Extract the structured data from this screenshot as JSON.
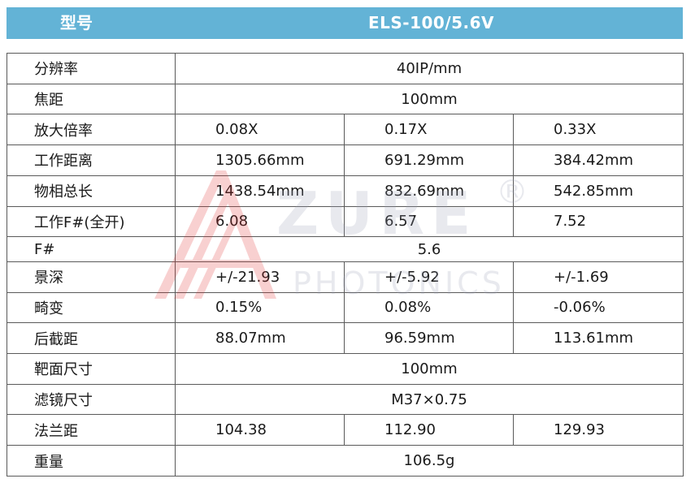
{
  "header": {
    "model_label": "型号",
    "model_value": "ELS-100/5.6V"
  },
  "watermark": {
    "brand": "ZURE",
    "subtitle": "PHOTONICS",
    "registered": "®"
  },
  "rows": [
    {
      "label": "分辨率",
      "span": "40IP/mm"
    },
    {
      "label": "焦距",
      "span": "100mm"
    },
    {
      "label": "放大倍率",
      "values": [
        "0.08X",
        "0.17X",
        "0.33X"
      ]
    },
    {
      "label": "工作距离",
      "values": [
        "1305.66mm",
        "691.29mm",
        "384.42mm"
      ]
    },
    {
      "label": "物相总长",
      "values": [
        "1438.54mm",
        "832.69mm",
        "542.85mm"
      ]
    },
    {
      "label": "工作F#(全开)",
      "values": [
        "6.08",
        "6.57",
        "7.52"
      ]
    },
    {
      "label": "F#",
      "span": "5.6"
    },
    {
      "label": "景深",
      "values": [
        "+/-21.93",
        "+/-5.92",
        "+/-1.69"
      ]
    },
    {
      "label": "畸变",
      "values": [
        "0.15%",
        "0.08%",
        "-0.06%"
      ]
    },
    {
      "label": "后截距",
      "values": [
        "88.07mm",
        "96.59mm",
        "113.61mm"
      ]
    },
    {
      "label": "靶面尺寸",
      "span": "100mm"
    },
    {
      "label": "滤镜尺寸",
      "span": "M37×0.75"
    },
    {
      "label": "法兰距",
      "values": [
        "104.38",
        "112.90",
        "129.93"
      ]
    },
    {
      "label": "重量",
      "span": "106.5g"
    }
  ]
}
